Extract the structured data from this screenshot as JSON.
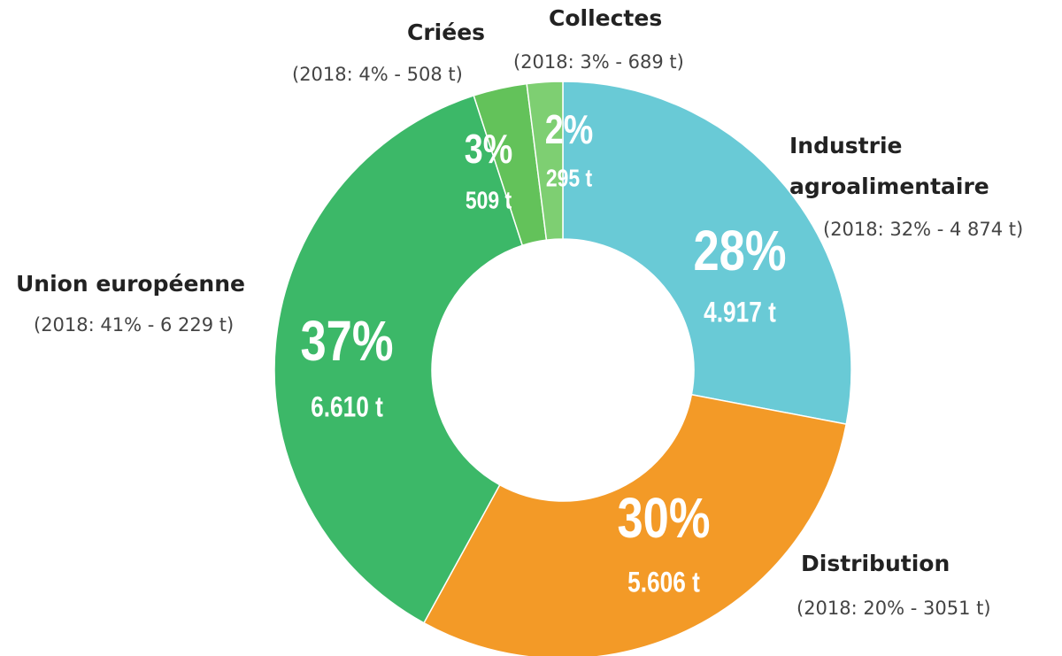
{
  "chart_data": {
    "type": "donut",
    "categories": [
      "Industrie agroalimentaire",
      "Distribution",
      "Union européenne",
      "Criées",
      "Collectes"
    ],
    "values": [
      28,
      30,
      37,
      3,
      2
    ],
    "value_labels": [
      "28%",
      "30%",
      "37%",
      "3%",
      "2%"
    ],
    "tonnage_labels": [
      "4.917 t",
      "5.606 t",
      "6.610 t",
      "509 t",
      "295 t"
    ],
    "notes": [
      "(2018: 32% - 4 874 t)",
      "(2018: 20% - 3051 t)",
      "(2018: 41% - 6 229 t)",
      "(2018: 4% - 508 t)",
      "(2018: 3% - 689 t)"
    ],
    "colors": [
      "#69cad6",
      "#f39a27",
      "#3cb868",
      "#63c25a",
      "#7ecf72"
    ]
  }
}
